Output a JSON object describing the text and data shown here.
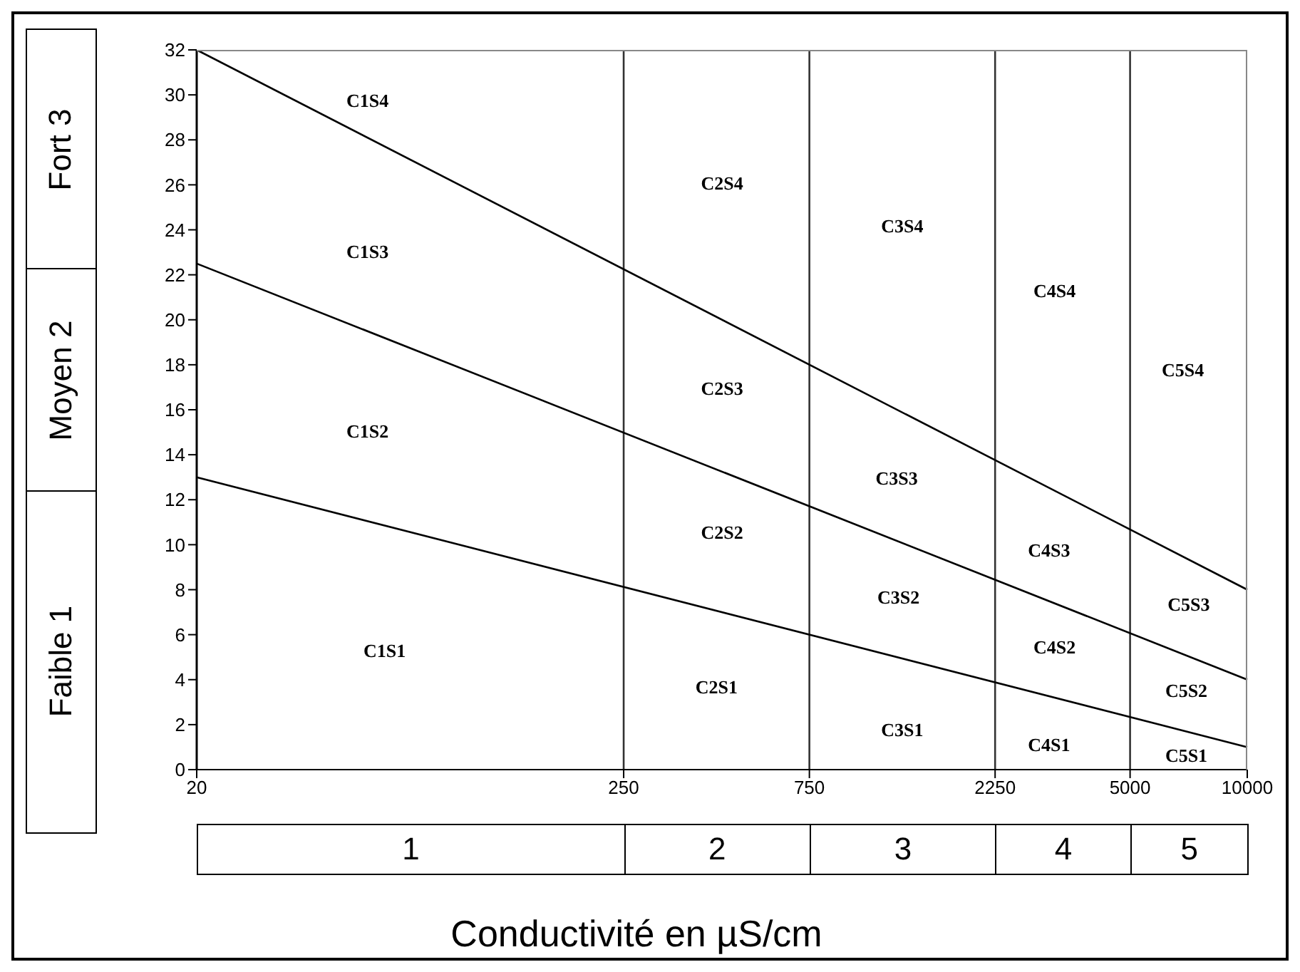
{
  "chart_data": {
    "type": "line",
    "xlabel": "Conductivité en µS/cm",
    "xlim": [
      20,
      10000
    ],
    "xticks": [
      20,
      250,
      750,
      2250,
      5000,
      10000
    ],
    "log": "x",
    "x": [
      20,
      10000
    ],
    "ylim": [
      0,
      32
    ],
    "yticks": [
      0,
      2,
      4,
      6,
      8,
      10,
      12,
      14,
      16,
      18,
      20,
      22,
      24,
      26,
      28,
      30,
      32
    ],
    "marker": "none",
    "line_style": "solid",
    "series": [
      {
        "color": "#000000",
        "values": [
          32,
          8
        ]
      },
      {
        "color": "#000000",
        "values": [
          22.5,
          4
        ]
      },
      {
        "color": "#000000",
        "values": [
          13,
          1
        ]
      }
    ],
    "ref_lines": [
      {
        "axis": "x",
        "value": 250
      },
      {
        "axis": "x",
        "value": 750
      },
      {
        "axis": "x",
        "value": 2250
      },
      {
        "axis": "x",
        "value": 5000
      }
    ],
    "annotations": [
      "Fort 3",
      "Moyen 2",
      "Faible 1",
      "1",
      "2",
      "3",
      "4",
      "5",
      "C1S4",
      "C1S3",
      "C1S2",
      "C1S1",
      "C2S4",
      "C2S3",
      "C2S2",
      "C2S1",
      "C3S4",
      "C3S3",
      "C3S2",
      "C3S1",
      "C4S4",
      "C4S3",
      "C4S2",
      "C4S1",
      "C5S4",
      "C5S3",
      "C5S2",
      "C5S1"
    ]
  }
}
